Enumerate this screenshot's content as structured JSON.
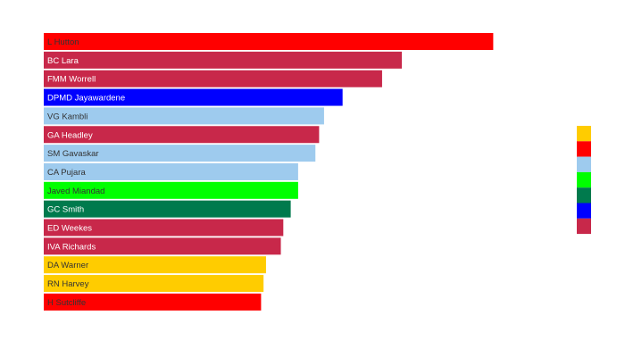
{
  "chart_data": {
    "type": "bar",
    "orientation": "horizontal",
    "grid": false,
    "legend_position": "right",
    "categories": [
      "L Hutton",
      "BC Lara",
      "FMM Worrell",
      "DPMD Jayawardene",
      "VG Kambli",
      "GA Headley",
      "SM Gavaskar",
      "CA Pujara",
      "Javed Miandad",
      "GC Smith",
      "ED Weekes",
      "IVA Richards",
      "DA Warner",
      "RN Harvey",
      "H Sutcliffe"
    ],
    "values": [
      364,
      290,
      274,
      242,
      227,
      223,
      220,
      206,
      206,
      200,
      194,
      192,
      180,
      178,
      176
    ],
    "bar_colors": [
      "#ff0000",
      "#c8284a",
      "#c8284a",
      "#0000ff",
      "#9ecbee",
      "#c8284a",
      "#9ecbee",
      "#9ecbee",
      "#00ff00",
      "#007a4d",
      "#c8284a",
      "#c8284a",
      "#ffcc00",
      "#ffcc00",
      "#ff0000"
    ],
    "label_colors": [
      "#333333",
      "#ffffff",
      "#ffffff",
      "#ffffff",
      "#333333",
      "#ffffff",
      "#333333",
      "#333333",
      "#333333",
      "#ffffff",
      "#ffffff",
      "#ffffff",
      "#333333",
      "#333333",
      "#333333"
    ],
    "legend_colors": [
      "#ffcc00",
      "#ff0000",
      "#9ecbee",
      "#00ff00",
      "#007a4d",
      "#0000ff",
      "#c8284a"
    ]
  }
}
